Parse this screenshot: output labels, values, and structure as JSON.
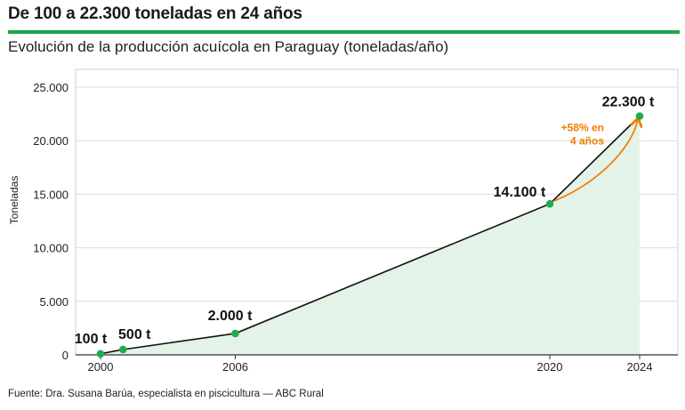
{
  "header": {
    "title": "De 100 a 22.300 toneladas en 24 años",
    "subtitle": "Evolución de la producción acuícola en Paraguay (toneladas/año)"
  },
  "footer": {
    "source": "Fuente: Dra. Susana Barúa, especialista en piscicultura — ABC Rural"
  },
  "colors": {
    "accent_green": "#1aa84a",
    "line": "#111111",
    "area_fill": "#e3f3e7",
    "point": "#22aa4f",
    "annotation": "#f07d00"
  },
  "chart_data": {
    "type": "line",
    "x": [
      2000,
      2001,
      2006,
      2020,
      2024
    ],
    "values": [
      100,
      500,
      2000,
      14100,
      22300
    ],
    "point_labels": [
      "100 t",
      "500 t",
      "2.000 t",
      "14.100 t",
      "22.300 t"
    ],
    "ylabel": "Toneladas",
    "xlabel": "",
    "ylim": [
      0,
      25000
    ],
    "xlim": [
      2000,
      2024
    ],
    "y_ticks": [
      0,
      5000,
      10000,
      15000,
      20000,
      25000
    ],
    "y_tick_labels": [
      "0",
      "5.000",
      "10.000",
      "15.000",
      "20.000",
      "25.000"
    ],
    "x_ticks": [
      2000,
      2006,
      2020,
      2024
    ],
    "x_tick_labels": [
      "2000",
      "2006",
      "2020",
      "2024"
    ],
    "grid": true,
    "area_under_line": true,
    "annotation": {
      "lines": [
        "+58% en",
        "4 años"
      ],
      "from_x": 2020,
      "to_x": 2024
    }
  }
}
